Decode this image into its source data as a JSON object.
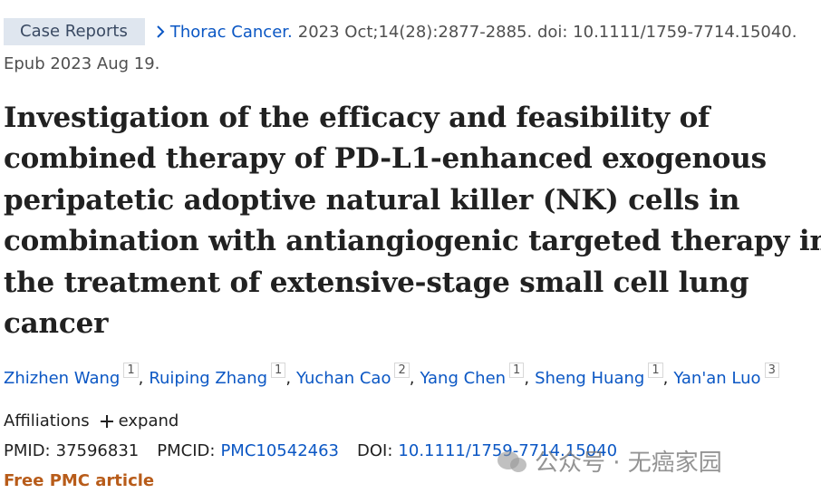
{
  "header": {
    "publication_type": "Case Reports",
    "journal": "Thorac Cancer.",
    "citation": "2023 Oct;14(28):2877-2885. doi: 10.1111/1759-7714.15040.",
    "epub": "Epub 2023 Aug 19."
  },
  "title_lines": [
    "Investigation of the efficacy and feasibility of",
    "combined therapy of PD-L1-enhanced exogenous",
    "peripatetic adoptive natural killer (NK) cells in",
    "combination with antiangiogenic targeted therapy in",
    "the treatment of extensive-stage small cell lung",
    "cancer"
  ],
  "author_separator": ",",
  "authors": [
    {
      "name": "Zhizhen Wang",
      "affiliation": "1"
    },
    {
      "name": "Ruiping Zhang",
      "affiliation": "1"
    },
    {
      "name": "Yuchan Cao",
      "affiliation": "2"
    },
    {
      "name": "Yang Chen",
      "affiliation": "1"
    },
    {
      "name": "Sheng Huang",
      "affiliation": "1"
    },
    {
      "name": "Yan'an Luo",
      "affiliation": "3"
    }
  ],
  "affiliations": {
    "label": "Affiliations",
    "toggle": "expand"
  },
  "identifiers": [
    {
      "label": "PMID:",
      "value": "37596831"
    },
    {
      "label": "PMCID:",
      "value": "PMC10542463"
    },
    {
      "label": "DOI:",
      "value": "10.1111/1759-7714.15040"
    }
  ],
  "free_article": "Free PMC article",
  "watermark": "公众号 · 无癌家园"
}
